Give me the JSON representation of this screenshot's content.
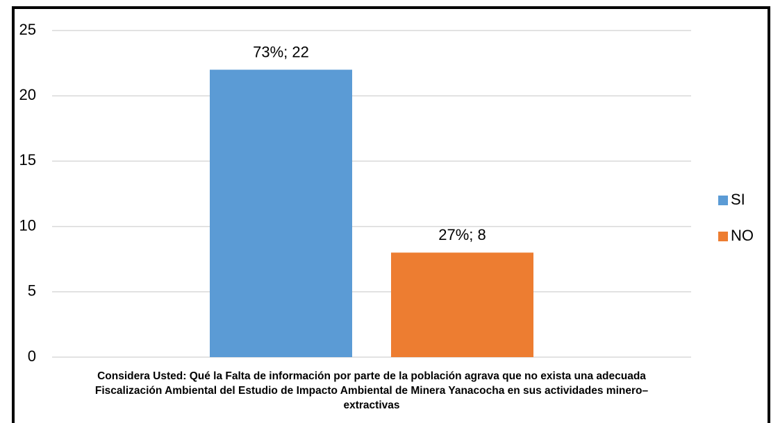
{
  "chart_data": {
    "type": "bar",
    "categories": [
      "Considera Usted: Qué la Falta de información por parte de la población agrava que no exista una adecuada  Fiscalización Ambiental del Estudio de Impacto Ambiental de Minera Yanacocha en sus actividades minero–extractivas"
    ],
    "series": [
      {
        "name": "SI",
        "color": "#5b9bd5",
        "values": [
          22
        ],
        "value_labels": [
          "73%; 22"
        ]
      },
      {
        "name": "NO",
        "color": "#ed7d31",
        "values": [
          8
        ],
        "value_labels": [
          "27%; 8"
        ]
      }
    ],
    "ylim": [
      0,
      25
    ],
    "yticks": [
      0,
      5,
      10,
      15,
      20,
      25
    ],
    "grid": true,
    "legend": "right"
  }
}
